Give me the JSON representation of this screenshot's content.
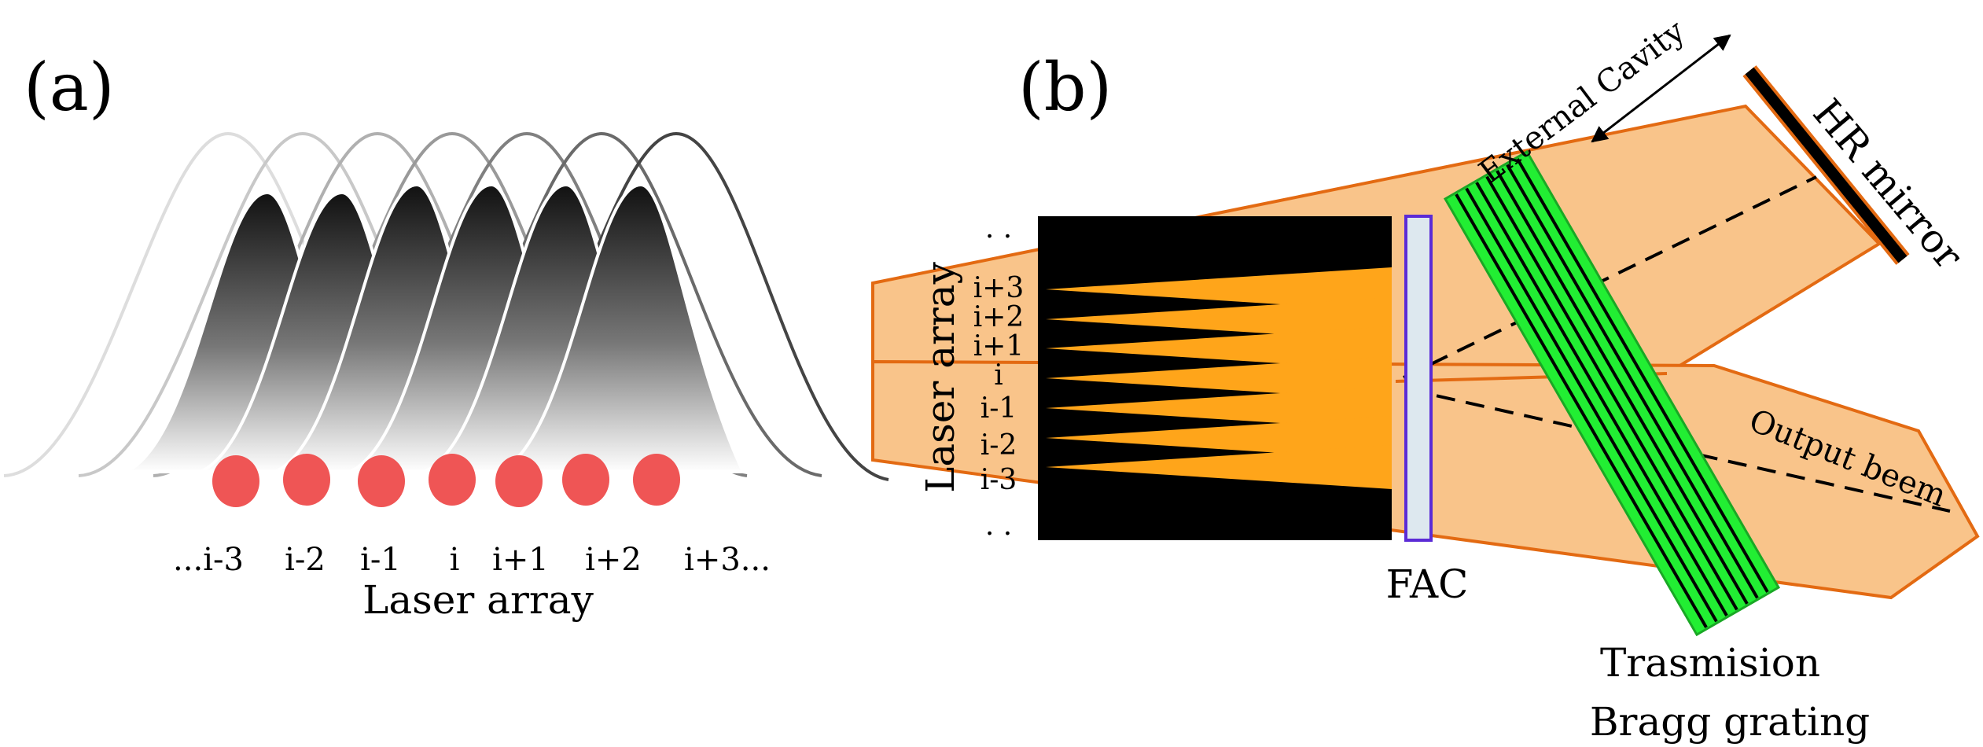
{
  "panel_a": {
    "label": "(a)",
    "emitter_labels": [
      "...i-3",
      "i-2",
      "i-1",
      "i",
      "i+1",
      "i+2",
      "i+3..."
    ],
    "caption": "Laser array",
    "spot_color": "#ef5555",
    "spot_count": 7,
    "narrow_peak_count": 6,
    "wide_curve_count": 7
  },
  "panel_b": {
    "label": "(b)",
    "laser_array_label": "Laser array",
    "emitter_labels": [
      ". .",
      "i+3",
      "i+2",
      "i+1",
      "i",
      "i-1",
      "i-2",
      "i-3",
      ". ."
    ],
    "fac_label": "FAC",
    "external_cavity_label": "External Cavity",
    "hr_mirror_label": "HR mirror",
    "output_beam_label": "Output beem",
    "grating_label_line1": "Trasmision",
    "grating_label_line2": "Bragg grating",
    "colors": {
      "beam_fill": "#f9c48a",
      "beam_edge": "#e36a12",
      "emitter_orange": "#ffa51a",
      "grating_green": "#22ee33",
      "fac_fill": "#dde8ef",
      "fac_edge": "#5b2bd6",
      "mirror": "#000000"
    }
  }
}
